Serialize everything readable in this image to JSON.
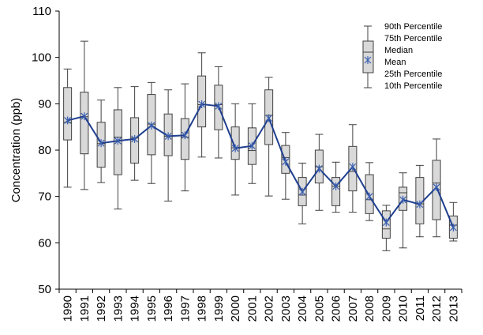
{
  "chart_data": {
    "type": "boxplot",
    "title": "",
    "xlabel": "",
    "ylabel": "Concentration (ppb)",
    "ylim": [
      50,
      110
    ],
    "yticks": [
      50,
      60,
      70,
      80,
      90,
      100,
      110
    ],
    "grid": false,
    "legend_position": "top-right",
    "legend": {
      "p90": "90th Percentile",
      "p75": "75th Percentile",
      "median": "Median",
      "mean": "Mean",
      "p25": "25th Percentile",
      "p10": "10th Percentile"
    },
    "colors": {
      "box_fill": "#d9d9d9",
      "box_stroke": "#404040",
      "mean_line": "#1f3f8f",
      "mean_marker": "#3a5fb0"
    },
    "categories": [
      "1990",
      "1991",
      "1992",
      "1993",
      "1994",
      "1995",
      "1996",
      "1997",
      "1998",
      "1999",
      "2000",
      "2001",
      "2002",
      "2003",
      "2004",
      "2005",
      "2006",
      "2007",
      "2008",
      "2009",
      "2010",
      "2011",
      "2012",
      "2013"
    ],
    "series": [
      {
        "name": "10th Percentile",
        "values": [
          72.0,
          71.5,
          73.0,
          67.3,
          73.5,
          72.8,
          69.0,
          71.2,
          78.5,
          78.3,
          70.3,
          72.8,
          70.1,
          69.4,
          64.1,
          67.0,
          66.6,
          66.6,
          64.8,
          58.3,
          58.9,
          61.3,
          61.3,
          60.4
        ]
      },
      {
        "name": "25th Percentile",
        "values": [
          82.2,
          79.2,
          76.3,
          74.7,
          77.2,
          79.0,
          78.8,
          78.0,
          85.0,
          84.4,
          78.0,
          76.9,
          81.2,
          75.0,
          68.0,
          72.9,
          68.0,
          71.2,
          66.3,
          61.0,
          67.0,
          64.1,
          65.0,
          61.0
        ]
      },
      {
        "name": "Median",
        "values": [
          86.0,
          87.2,
          81.4,
          82.8,
          82.6,
          85.6,
          83.0,
          82.8,
          89.8,
          89.8,
          80.5,
          79.9,
          87.5,
          78.4,
          70.3,
          76.4,
          72.2,
          75.4,
          69.3,
          63.0,
          70.8,
          68.4,
          72.9,
          63.8
        ]
      },
      {
        "name": "75th Percentile",
        "values": [
          93.5,
          92.5,
          86.0,
          88.7,
          87.0,
          92.0,
          87.8,
          86.8,
          96.0,
          94.0,
          85.0,
          84.8,
          93.0,
          81.0,
          74.1,
          80.0,
          74.1,
          80.8,
          74.7,
          66.9,
          72.0,
          74.1,
          77.8,
          65.8
        ]
      },
      {
        "name": "90th Percentile",
        "values": [
          97.5,
          103.5,
          90.8,
          93.5,
          93.7,
          94.6,
          93.0,
          94.3,
          101.0,
          98.0,
          90.0,
          90.0,
          95.7,
          83.8,
          77.2,
          83.4,
          77.4,
          85.5,
          77.3,
          68.1,
          75.1,
          76.7,
          82.4,
          68.7
        ]
      },
      {
        "name": "Mean",
        "values": [
          86.4,
          87.3,
          81.5,
          82.0,
          82.4,
          85.3,
          83.0,
          83.2,
          89.9,
          89.5,
          80.4,
          80.9,
          86.9,
          77.5,
          71.0,
          76.0,
          72.2,
          76.4,
          70.0,
          64.4,
          69.3,
          68.3,
          72.0,
          63.3
        ]
      }
    ]
  }
}
